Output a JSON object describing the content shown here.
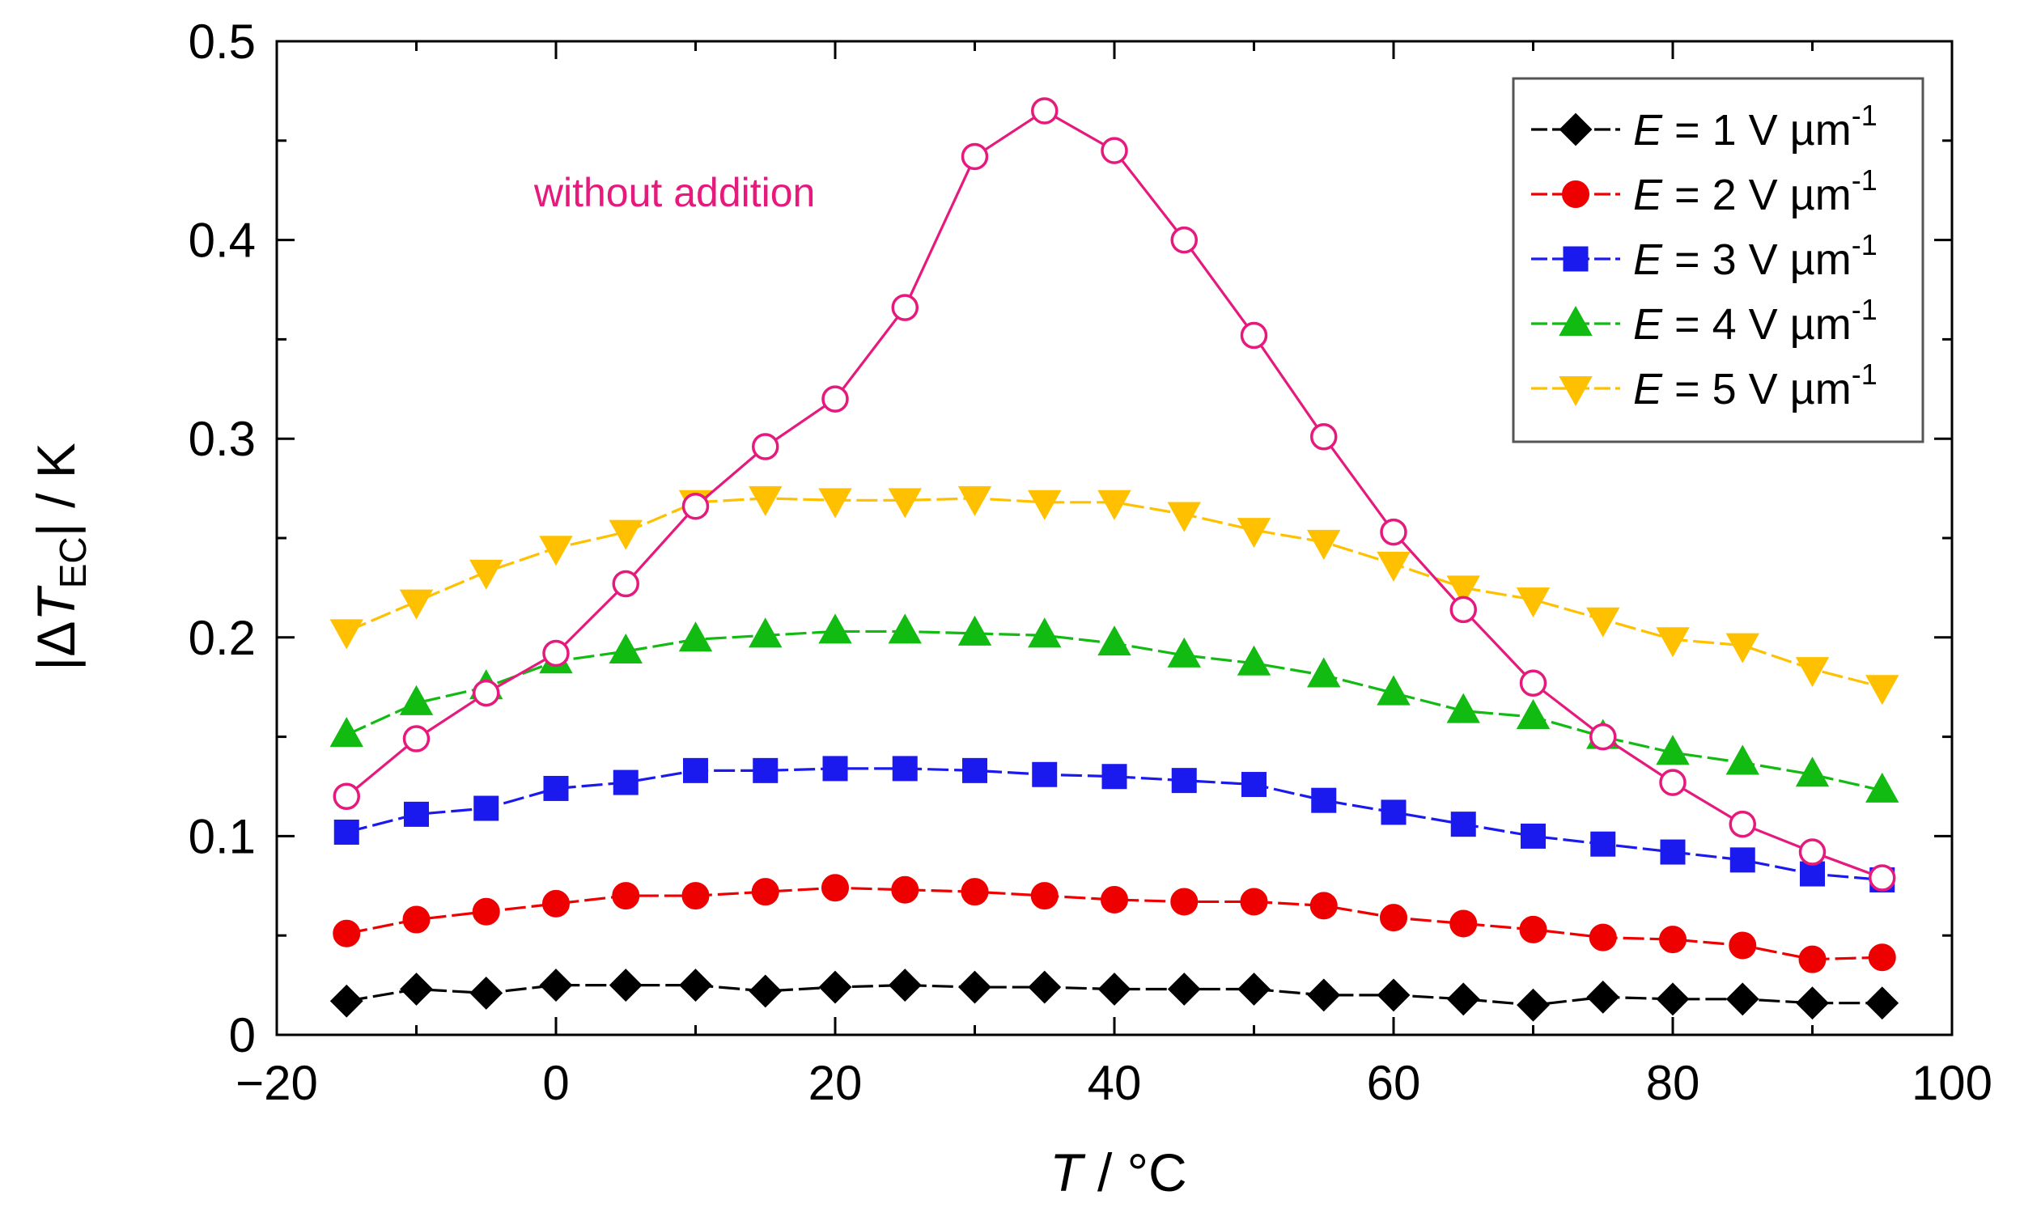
{
  "chart_data": {
    "type": "line",
    "title": "",
    "xlabel": {
      "symbol": "T",
      "rest": " / °C"
    },
    "ylabel": {
      "prefix": "|Δ",
      "symbol": "T",
      "subscript": "EC",
      "suffix": "| / K"
    },
    "xlim": [
      -20,
      100
    ],
    "ylim": [
      0,
      0.5
    ],
    "x_ticks": [
      -20,
      0,
      20,
      40,
      60,
      80,
      100
    ],
    "x_tick_labels": [
      "−20",
      "0",
      "20",
      "40",
      "60",
      "80",
      "100"
    ],
    "y_ticks": [
      0,
      0.1,
      0.2,
      0.3,
      0.4,
      0.5
    ],
    "y_tick_labels": [
      "0",
      "0.1",
      "0.2",
      "0.3",
      "0.4",
      "0.5"
    ],
    "grid": false,
    "legend_position": "top-right",
    "annotations": [
      {
        "text": "without addition",
        "x": 8.5,
        "y": 0.417,
        "color": "#e6197d"
      }
    ],
    "x": [
      -15,
      -10,
      -5,
      0,
      5,
      10,
      15,
      20,
      25,
      30,
      35,
      40,
      45,
      50,
      55,
      60,
      65,
      70,
      75,
      80,
      85,
      90,
      95
    ],
    "series": [
      {
        "name": "E = 1 V µm-1",
        "label_var": "E",
        "label_value": " = 1 V µm",
        "label_sup": "-1",
        "color": "#000000",
        "marker": "diamond",
        "filled": true,
        "line": "dashed",
        "values": [
          0.017,
          0.023,
          0.021,
          0.025,
          0.025,
          0.025,
          0.022,
          0.024,
          0.025,
          0.024,
          0.024,
          0.023,
          0.023,
          0.023,
          0.02,
          0.02,
          0.018,
          0.015,
          0.019,
          0.018,
          0.018,
          0.016,
          0.016
        ]
      },
      {
        "name": "E = 2 V µm-1",
        "label_var": "E",
        "label_value": " = 2 V µm",
        "label_sup": "-1",
        "color": "#ee0000",
        "marker": "circle",
        "filled": true,
        "line": "dashed",
        "values": [
          0.051,
          0.058,
          0.062,
          0.066,
          0.07,
          0.07,
          0.072,
          0.074,
          0.073,
          0.072,
          0.07,
          0.068,
          0.067,
          0.067,
          0.065,
          0.059,
          0.056,
          0.053,
          0.049,
          0.048,
          0.045,
          0.038,
          0.039
        ]
      },
      {
        "name": "E = 3 V µm-1",
        "label_var": "E",
        "label_value": " = 3 V µm",
        "label_sup": "-1",
        "color": "#1a1aee",
        "marker": "square",
        "filled": true,
        "line": "dashed",
        "values": [
          0.102,
          0.111,
          0.114,
          0.124,
          0.127,
          0.133,
          0.133,
          0.134,
          0.134,
          0.133,
          0.131,
          0.13,
          0.128,
          0.126,
          0.118,
          0.112,
          0.106,
          0.1,
          0.096,
          0.092,
          0.088,
          0.081,
          0.078
        ]
      },
      {
        "name": "E = 4 V µm-1",
        "label_var": "E",
        "label_value": " = 4 V µm",
        "label_sup": "-1",
        "color": "#11bb11",
        "marker": "triangle-up",
        "filled": true,
        "line": "dashed",
        "values": [
          0.151,
          0.167,
          0.175,
          0.188,
          0.193,
          0.199,
          0.201,
          0.203,
          0.203,
          0.202,
          0.201,
          0.197,
          0.191,
          0.187,
          0.181,
          0.172,
          0.163,
          0.16,
          0.15,
          0.142,
          0.137,
          0.131,
          0.123
        ]
      },
      {
        "name": "E = 5 V µm-1",
        "label_var": "E",
        "label_value": " = 5 V µm",
        "label_sup": "-1",
        "color": "#ffc000",
        "marker": "triangle-down",
        "filled": true,
        "line": "dashed",
        "values": [
          0.203,
          0.218,
          0.233,
          0.245,
          0.253,
          0.268,
          0.27,
          0.269,
          0.269,
          0.27,
          0.268,
          0.268,
          0.262,
          0.254,
          0.248,
          0.237,
          0.225,
          0.219,
          0.209,
          0.199,
          0.196,
          0.184,
          0.175
        ]
      },
      {
        "name": "without addition",
        "color": "#e6197d",
        "marker": "circle",
        "filled": false,
        "line": "solid",
        "in_legend": false,
        "values": [
          0.12,
          0.149,
          0.172,
          0.192,
          0.227,
          0.266,
          0.296,
          0.32,
          0.366,
          0.442,
          0.465,
          0.445,
          0.4,
          0.352,
          0.301,
          0.253,
          0.214,
          0.177,
          0.15,
          0.127,
          0.106,
          0.092,
          0.079
        ]
      }
    ]
  }
}
